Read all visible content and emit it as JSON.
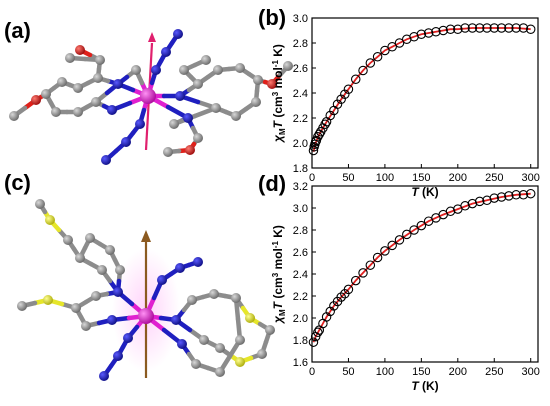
{
  "panels": {
    "a": "(a)",
    "b": "(b)",
    "c": "(c)",
    "d": "(d)"
  },
  "colors": {
    "carbon": "#8c8c8c",
    "nitrogen": "#1f1fbf",
    "oxygen": "#e0201a",
    "sulfur": "#e6e62a",
    "metal": "#e020d0",
    "fit": "#e02020",
    "easy_axis_a": "#e0206e",
    "easy_axis_c": "#8b5a20"
  },
  "chart_data": [
    {
      "panel": "b",
      "type": "scatter",
      "xlabel": "T (K)",
      "ylabel": "χMT (cm3 mol-1 K)",
      "xlim": [
        0,
        310
      ],
      "ylim": [
        1.8,
        3.0
      ],
      "xticks": [
        "0",
        "50",
        "100",
        "150",
        "200",
        "250",
        "300"
      ],
      "yticks": [
        "1.8",
        "2.0",
        "2.2",
        "2.4",
        "2.6",
        "2.8",
        "3.0"
      ],
      "series": [
        {
          "kind": "markers",
          "x": [
            2,
            3,
            4,
            5,
            6,
            8,
            10,
            12,
            15,
            18,
            20,
            25,
            30,
            35,
            40,
            45,
            50,
            60,
            70,
            80,
            90,
            100,
            110,
            120,
            130,
            140,
            150,
            160,
            170,
            180,
            190,
            200,
            210,
            220,
            230,
            240,
            250,
            260,
            270,
            280,
            290,
            300
          ],
          "y": [
            1.94,
            1.97,
            1.99,
            2.01,
            2.02,
            2.05,
            2.07,
            2.09,
            2.12,
            2.15,
            2.17,
            2.22,
            2.26,
            2.31,
            2.35,
            2.39,
            2.43,
            2.51,
            2.58,
            2.64,
            2.69,
            2.74,
            2.77,
            2.8,
            2.83,
            2.85,
            2.87,
            2.88,
            2.89,
            2.9,
            2.91,
            2.91,
            2.92,
            2.92,
            2.92,
            2.92,
            2.92,
            2.92,
            2.92,
            2.92,
            2.92,
            2.91
          ]
        },
        {
          "kind": "fit-line",
          "x": [
            2,
            5,
            10,
            15,
            20,
            30,
            40,
            50,
            60,
            70,
            80,
            90,
            100,
            110,
            120,
            130,
            140,
            150,
            160,
            170,
            180,
            190,
            200,
            220,
            240,
            260,
            280,
            300
          ],
          "y": [
            1.93,
            2.0,
            2.07,
            2.12,
            2.17,
            2.26,
            2.35,
            2.43,
            2.51,
            2.58,
            2.64,
            2.69,
            2.74,
            2.77,
            2.8,
            2.83,
            2.85,
            2.87,
            2.88,
            2.89,
            2.9,
            2.91,
            2.91,
            2.92,
            2.92,
            2.92,
            2.92,
            2.91
          ]
        }
      ]
    },
    {
      "panel": "d",
      "type": "scatter",
      "xlabel": "T (K)",
      "ylabel": "χMT (cm3 mol-1 K)",
      "xlim": [
        0,
        310
      ],
      "ylim": [
        1.6,
        3.2
      ],
      "xticks": [
        "0",
        "50",
        "100",
        "150",
        "200",
        "250",
        "300"
      ],
      "yticks": [
        "1.6",
        "1.8",
        "2.0",
        "2.2",
        "2.4",
        "2.6",
        "2.8",
        "3.0",
        "3.2"
      ],
      "series": [
        {
          "kind": "markers",
          "x": [
            2,
            5,
            8,
            10,
            15,
            20,
            25,
            30,
            35,
            40,
            45,
            50,
            60,
            70,
            80,
            90,
            100,
            110,
            120,
            130,
            140,
            150,
            160,
            170,
            180,
            190,
            200,
            210,
            220,
            230,
            240,
            250,
            260,
            270,
            280,
            290,
            300
          ],
          "y": [
            1.78,
            1.83,
            1.87,
            1.89,
            1.95,
            2.01,
            2.06,
            2.11,
            2.15,
            2.19,
            2.22,
            2.26,
            2.34,
            2.41,
            2.48,
            2.55,
            2.61,
            2.66,
            2.71,
            2.76,
            2.8,
            2.84,
            2.88,
            2.91,
            2.94,
            2.97,
            2.99,
            3.02,
            3.04,
            3.06,
            3.07,
            3.09,
            3.1,
            3.11,
            3.12,
            3.12,
            3.13
          ]
        },
        {
          "kind": "fit-line",
          "x": [
            2,
            5,
            10,
            15,
            20,
            30,
            40,
            50,
            60,
            70,
            80,
            90,
            100,
            120,
            140,
            160,
            180,
            200,
            220,
            240,
            260,
            280,
            300
          ],
          "y": [
            1.78,
            1.83,
            1.89,
            1.95,
            2.01,
            2.11,
            2.19,
            2.26,
            2.34,
            2.41,
            2.48,
            2.55,
            2.61,
            2.71,
            2.8,
            2.88,
            2.94,
            2.99,
            3.04,
            3.07,
            3.1,
            3.12,
            3.13
          ]
        }
      ]
    }
  ]
}
